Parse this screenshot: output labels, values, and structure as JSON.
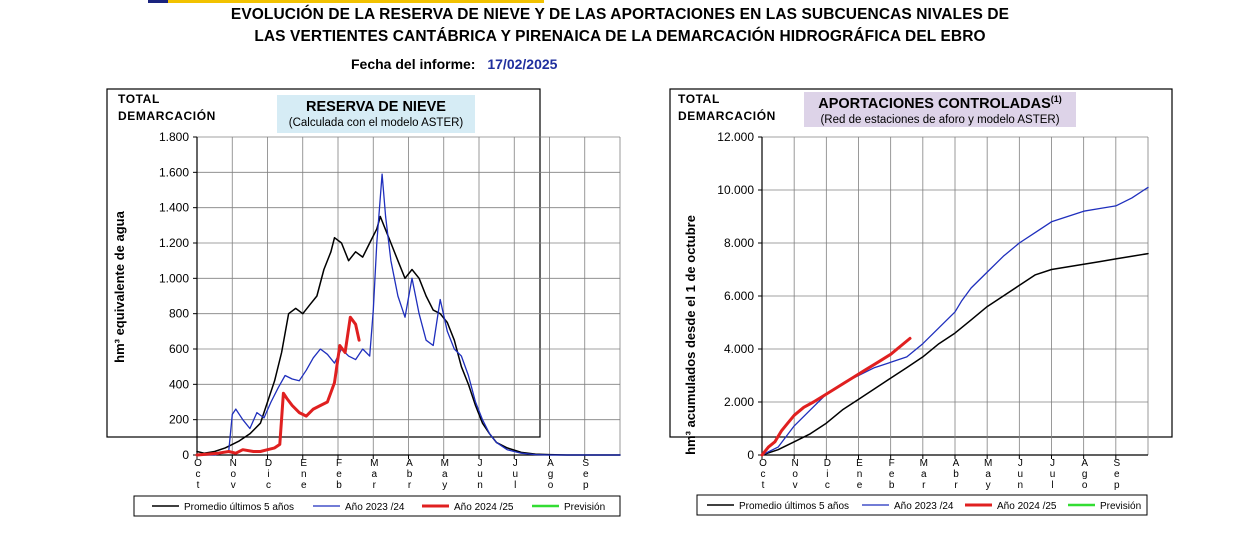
{
  "header": {
    "title_line1": "EVOLUCIÓN DE LA RESERVA DE NIEVE Y DE LAS APORTACIONES EN LAS SUBCUENCAS NIVALES DE",
    "title_line2": "LAS VERTIENTES CANTÁBRICA Y PIRENAICA DE LA DEMARCACIÓN HIDROGRÁFICA DEL EBRO",
    "report_label": "Fecha del informe:",
    "report_date": "17/02/2025"
  },
  "colors": {
    "promedio": "#000000",
    "year_2023_24": "#1f2fbd",
    "year_2024_25": "#e02020",
    "prevision": "#33dd33",
    "snow_title_bg": "#d6ecf5",
    "flow_title_bg": "#ddd3e8",
    "grid": "#808080"
  },
  "chart_data": [
    {
      "type": "line",
      "corner_label": [
        "TOTAL",
        "DEMARCACIÓN"
      ],
      "title": "RESERVA DE NIEVE",
      "subtitle": "(Calculada con el modelo ASTER)",
      "ylabel": "hm³ equivalente de agua",
      "ylim": [
        0,
        1800
      ],
      "yticks": [
        0,
        200,
        400,
        600,
        800,
        1000,
        1200,
        1400,
        1600,
        1800
      ],
      "ytick_labels": [
        "0",
        "200",
        "400",
        "600",
        "800",
        "1.000",
        "1.200",
        "1.400",
        "1.600",
        "1.800"
      ],
      "xlim": [
        0,
        12
      ],
      "month_labels": [
        [
          "O",
          "c",
          "t"
        ],
        [
          "N",
          "o",
          "v"
        ],
        [
          "D",
          "i",
          "c"
        ],
        [
          "E",
          "n",
          "e"
        ],
        [
          "F",
          "e",
          "b"
        ],
        [
          "M",
          "a",
          "r"
        ],
        [
          "A",
          "b",
          "r"
        ],
        [
          "M",
          "a",
          "y"
        ],
        [
          "J",
          "u",
          "n"
        ],
        [
          "J",
          "u",
          "l"
        ],
        [
          "A",
          "g",
          "o"
        ],
        [
          "S",
          "e",
          "p"
        ]
      ],
      "legend": [
        "Promedio últimos 5 años",
        "Año 2023 /24",
        "Año 2024 /25",
        "Previsión"
      ],
      "series": [
        {
          "name": "Promedio últimos 5 años",
          "x": [
            0,
            0.2,
            0.5,
            0.8,
            1.0,
            1.2,
            1.5,
            1.8,
            2.0,
            2.2,
            2.4,
            2.6,
            2.8,
            3.0,
            3.2,
            3.4,
            3.6,
            3.8,
            3.9,
            4.1,
            4.3,
            4.5,
            4.7,
            4.9,
            5.1,
            5.2,
            5.3,
            5.5,
            5.7,
            5.9,
            6.1,
            6.3,
            6.5,
            6.7,
            6.9,
            7.1,
            7.3,
            7.5,
            7.7,
            7.9,
            8.1,
            8.3,
            8.5,
            8.8,
            9.2,
            9.6,
            10.0,
            10.5,
            11.0,
            12.0
          ],
          "values": [
            20,
            10,
            20,
            40,
            60,
            80,
            120,
            180,
            300,
            420,
            580,
            800,
            830,
            800,
            850,
            900,
            1050,
            1150,
            1230,
            1200,
            1100,
            1150,
            1120,
            1200,
            1280,
            1350,
            1300,
            1200,
            1100,
            1000,
            1050,
            1000,
            900,
            820,
            800,
            750,
            650,
            500,
            400,
            280,
            180,
            120,
            70,
            40,
            15,
            5,
            2,
            0,
            0,
            0
          ]
        },
        {
          "name": "Año 2023 /24",
          "x": [
            0,
            0.5,
            0.9,
            1.0,
            1.1,
            1.3,
            1.5,
            1.7,
            1.9,
            2.1,
            2.3,
            2.5,
            2.7,
            2.9,
            3.1,
            3.3,
            3.5,
            3.7,
            3.9,
            4.1,
            4.3,
            4.5,
            4.7,
            4.9,
            5.0,
            5.1,
            5.25,
            5.35,
            5.5,
            5.7,
            5.9,
            6.1,
            6.3,
            6.5,
            6.7,
            6.9,
            7.1,
            7.3,
            7.5,
            7.7,
            7.9,
            8.1,
            8.3,
            8.5,
            8.8,
            9.2,
            9.6,
            10.0,
            12.0
          ],
          "values": [
            0,
            0,
            20,
            230,
            260,
            200,
            150,
            240,
            210,
            300,
            380,
            450,
            430,
            420,
            480,
            550,
            600,
            570,
            520,
            600,
            560,
            540,
            600,
            560,
            820,
            1200,
            1590,
            1350,
            1100,
            900,
            780,
            1000,
            800,
            650,
            620,
            880,
            700,
            600,
            560,
            450,
            300,
            200,
            120,
            70,
            30,
            10,
            2,
            0,
            0
          ]
        },
        {
          "name": "Año 2024 /25",
          "x": [
            0,
            0.3,
            0.6,
            0.9,
            1.1,
            1.3,
            1.6,
            1.8,
            2.0,
            2.2,
            2.35,
            2.45,
            2.55,
            2.7,
            2.9,
            3.1,
            3.3,
            3.5,
            3.7,
            3.9,
            4.05,
            4.2,
            4.35,
            4.5,
            4.6
          ],
          "values": [
            0,
            5,
            10,
            20,
            10,
            30,
            20,
            20,
            30,
            40,
            60,
            350,
            320,
            280,
            240,
            220,
            260,
            280,
            300,
            410,
            620,
            580,
            780,
            740,
            650
          ]
        },
        {
          "name": "Previsión",
          "x": [],
          "values": []
        }
      ]
    },
    {
      "type": "line",
      "corner_label": [
        "TOTAL",
        "DEMARCACIÓN"
      ],
      "title": "APORTACIONES CONTROLADAS",
      "title_superscript": "(1)",
      "subtitle": "(Red de estaciones de aforo y modelo ASTER)",
      "ylabel": "hm³ acumulados desde el 1 de octubre",
      "ylim": [
        0,
        12000
      ],
      "yticks": [
        0,
        2000,
        4000,
        6000,
        8000,
        10000,
        12000
      ],
      "ytick_labels": [
        "0",
        "2.000",
        "4.000",
        "6.000",
        "8.000",
        "10.000",
        "12.000"
      ],
      "xlim": [
        0,
        12
      ],
      "month_labels": [
        [
          "O",
          "c",
          "t"
        ],
        [
          "N",
          "o",
          "v"
        ],
        [
          "D",
          "i",
          "c"
        ],
        [
          "E",
          "n",
          "e"
        ],
        [
          "F",
          "e",
          "b"
        ],
        [
          "M",
          "a",
          "r"
        ],
        [
          "A",
          "b",
          "r"
        ],
        [
          "M",
          "a",
          "y"
        ],
        [
          "J",
          "u",
          "n"
        ],
        [
          "J",
          "u",
          "l"
        ],
        [
          "A",
          "g",
          "o"
        ],
        [
          "S",
          "e",
          "p"
        ]
      ],
      "legend": [
        "Promedio últimos 5 años",
        "Año 2023 /24",
        "Año 2024 /25",
        "Previsión"
      ],
      "series": [
        {
          "name": "Promedio últimos 5 años",
          "x": [
            0,
            0.5,
            1.0,
            1.5,
            2.0,
            2.5,
            3.0,
            3.5,
            4.0,
            4.5,
            5.0,
            5.5,
            6.0,
            6.5,
            7.0,
            7.5,
            8.0,
            8.5,
            9.0,
            9.5,
            10.0,
            10.5,
            11.0,
            11.5,
            12.0
          ],
          "values": [
            0,
            200,
            500,
            800,
            1200,
            1700,
            2100,
            2500,
            2900,
            3300,
            3700,
            4200,
            4600,
            5100,
            5600,
            6000,
            6400,
            6800,
            7000,
            7100,
            7200,
            7300,
            7400,
            7500,
            7600
          ]
        },
        {
          "name": "Año 2023 /24",
          "x": [
            0,
            0.5,
            1.0,
            1.5,
            2.0,
            2.5,
            3.0,
            3.5,
            4.0,
            4.5,
            5.0,
            5.5,
            6.0,
            6.2,
            6.5,
            7.0,
            7.5,
            8.0,
            8.5,
            9.0,
            9.5,
            10.0,
            10.5,
            11.0,
            11.5,
            12.0
          ],
          "values": [
            0,
            300,
            1100,
            1700,
            2300,
            2700,
            3000,
            3300,
            3500,
            3700,
            4200,
            4800,
            5400,
            5800,
            6300,
            6900,
            7500,
            8000,
            8400,
            8800,
            9000,
            9200,
            9300,
            9400,
            9700,
            10100
          ]
        },
        {
          "name": "Año 2024 /25",
          "x": [
            0,
            0.2,
            0.4,
            0.6,
            0.8,
            1.0,
            1.3,
            1.6,
            2.0,
            2.4,
            2.8,
            3.2,
            3.6,
            4.0,
            4.3,
            4.6
          ],
          "values": [
            0,
            300,
            500,
            900,
            1200,
            1500,
            1800,
            2000,
            2300,
            2600,
            2900,
            3200,
            3500,
            3800,
            4100,
            4400
          ]
        },
        {
          "name": "Previsión",
          "x": [],
          "values": []
        }
      ]
    }
  ]
}
